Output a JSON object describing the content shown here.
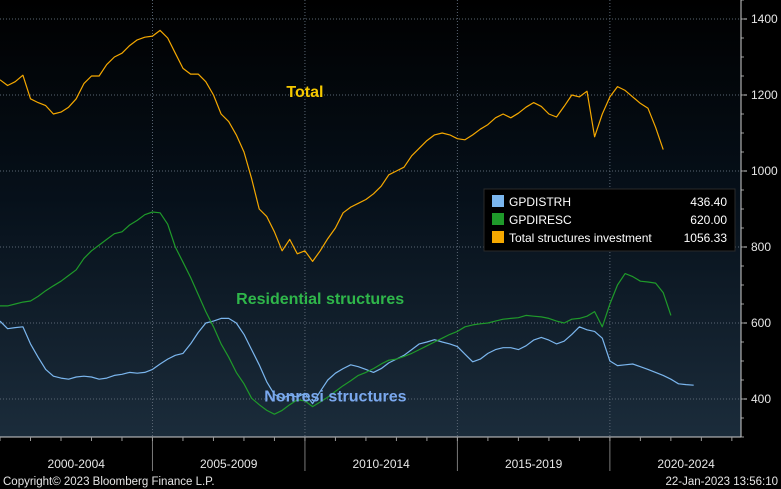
{
  "chart_data": {
    "type": "line",
    "ylim": [
      300,
      1450
    ],
    "xlim": [
      2000.0,
      2024.3
    ],
    "yticks": [
      400,
      600,
      800,
      1000,
      1200,
      1400
    ],
    "grid": true,
    "legend_position": "right",
    "x_category_labels": [
      {
        "label": "2000-2004",
        "center": 2002.5
      },
      {
        "label": "2005-2009",
        "center": 2007.5
      },
      {
        "label": "2010-2014",
        "center": 2012.5
      },
      {
        "label": "2015-2019",
        "center": 2017.5
      },
      {
        "label": "2020-2024",
        "center": 2022.5
      }
    ],
    "x_separators": [
      2005,
      2010,
      2015,
      2020
    ],
    "series": [
      {
        "name": "GPDISTRH",
        "color": "#7bb6ee",
        "last_value": "436.40",
        "points": [
          [
            2000.0,
            605
          ],
          [
            2000.25,
            585
          ],
          [
            2000.5,
            588
          ],
          [
            2000.75,
            590
          ],
          [
            2001.0,
            545
          ],
          [
            2001.25,
            510
          ],
          [
            2001.5,
            478
          ],
          [
            2001.75,
            460
          ],
          [
            2002.0,
            455
          ],
          [
            2002.25,
            452
          ],
          [
            2002.5,
            458
          ],
          [
            2002.75,
            460
          ],
          [
            2003.0,
            458
          ],
          [
            2003.25,
            452
          ],
          [
            2003.5,
            455
          ],
          [
            2003.75,
            462
          ],
          [
            2004.0,
            465
          ],
          [
            2004.25,
            470
          ],
          [
            2004.5,
            468
          ],
          [
            2004.75,
            470
          ],
          [
            2005.0,
            478
          ],
          [
            2005.25,
            492
          ],
          [
            2005.5,
            505
          ],
          [
            2005.75,
            515
          ],
          [
            2006.0,
            520
          ],
          [
            2006.25,
            545
          ],
          [
            2006.5,
            575
          ],
          [
            2006.75,
            600
          ],
          [
            2007.0,
            605
          ],
          [
            2007.25,
            612
          ],
          [
            2007.5,
            612
          ],
          [
            2007.75,
            600
          ],
          [
            2008.0,
            570
          ],
          [
            2008.25,
            530
          ],
          [
            2008.5,
            490
          ],
          [
            2008.75,
            445
          ],
          [
            2009.0,
            412
          ],
          [
            2009.25,
            402
          ],
          [
            2009.5,
            410
          ],
          [
            2009.75,
            405
          ],
          [
            2010.0,
            415
          ],
          [
            2010.25,
            388
          ],
          [
            2010.5,
            420
          ],
          [
            2010.75,
            450
          ],
          [
            2011.0,
            468
          ],
          [
            2011.25,
            480
          ],
          [
            2011.5,
            490
          ],
          [
            2011.75,
            485
          ],
          [
            2012.0,
            478
          ],
          [
            2012.25,
            470
          ],
          [
            2012.5,
            480
          ],
          [
            2012.75,
            495
          ],
          [
            2013.0,
            505
          ],
          [
            2013.25,
            515
          ],
          [
            2013.5,
            530
          ],
          [
            2013.75,
            545
          ],
          [
            2014.0,
            550
          ],
          [
            2014.25,
            556
          ],
          [
            2014.5,
            550
          ],
          [
            2014.75,
            545
          ],
          [
            2015.0,
            538
          ],
          [
            2015.25,
            518
          ],
          [
            2015.5,
            498
          ],
          [
            2015.75,
            505
          ],
          [
            2016.0,
            520
          ],
          [
            2016.25,
            530
          ],
          [
            2016.5,
            535
          ],
          [
            2016.75,
            535
          ],
          [
            2017.0,
            530
          ],
          [
            2017.25,
            540
          ],
          [
            2017.5,
            555
          ],
          [
            2017.75,
            562
          ],
          [
            2018.0,
            555
          ],
          [
            2018.25,
            545
          ],
          [
            2018.5,
            552
          ],
          [
            2018.75,
            570
          ],
          [
            2019.0,
            590
          ],
          [
            2019.25,
            582
          ],
          [
            2019.5,
            578
          ],
          [
            2019.75,
            560
          ],
          [
            2020.0,
            500
          ],
          [
            2020.25,
            488
          ],
          [
            2020.5,
            490
          ],
          [
            2020.75,
            492
          ],
          [
            2021.0,
            485
          ],
          [
            2021.25,
            478
          ],
          [
            2021.5,
            470
          ],
          [
            2021.75,
            462
          ],
          [
            2022.0,
            452
          ],
          [
            2022.25,
            440
          ],
          [
            2022.5,
            438
          ],
          [
            2022.75,
            436.4
          ]
        ]
      },
      {
        "name": "GPDIRESC",
        "color": "#1f9a2a",
        "last_value": "620.00",
        "points": [
          [
            2000.0,
            645
          ],
          [
            2000.25,
            645
          ],
          [
            2000.5,
            650
          ],
          [
            2000.75,
            655
          ],
          [
            2001.0,
            658
          ],
          [
            2001.25,
            670
          ],
          [
            2001.5,
            685
          ],
          [
            2001.75,
            698
          ],
          [
            2002.0,
            710
          ],
          [
            2002.25,
            725
          ],
          [
            2002.5,
            740
          ],
          [
            2002.75,
            770
          ],
          [
            2003.0,
            790
          ],
          [
            2003.25,
            805
          ],
          [
            2003.5,
            820
          ],
          [
            2003.75,
            835
          ],
          [
            2004.0,
            840
          ],
          [
            2004.25,
            858
          ],
          [
            2004.5,
            870
          ],
          [
            2004.75,
            885
          ],
          [
            2005.0,
            892
          ],
          [
            2005.25,
            890
          ],
          [
            2005.5,
            860
          ],
          [
            2005.75,
            800
          ],
          [
            2006.0,
            760
          ],
          [
            2006.25,
            720
          ],
          [
            2006.5,
            675
          ],
          [
            2006.75,
            630
          ],
          [
            2007.0,
            590
          ],
          [
            2007.25,
            545
          ],
          [
            2007.5,
            510
          ],
          [
            2007.75,
            470
          ],
          [
            2008.0,
            440
          ],
          [
            2008.25,
            402
          ],
          [
            2008.5,
            385
          ],
          [
            2008.75,
            370
          ],
          [
            2009.0,
            360
          ],
          [
            2009.25,
            370
          ],
          [
            2009.5,
            385
          ],
          [
            2009.75,
            398
          ],
          [
            2010.0,
            395
          ],
          [
            2010.25,
            380
          ],
          [
            2010.5,
            392
          ],
          [
            2010.75,
            405
          ],
          [
            2011.0,
            420
          ],
          [
            2011.25,
            435
          ],
          [
            2011.5,
            448
          ],
          [
            2011.75,
            462
          ],
          [
            2012.0,
            470
          ],
          [
            2012.25,
            480
          ],
          [
            2012.5,
            492
          ],
          [
            2012.75,
            502
          ],
          [
            2013.0,
            505
          ],
          [
            2013.25,
            512
          ],
          [
            2013.5,
            520
          ],
          [
            2013.75,
            530
          ],
          [
            2014.0,
            540
          ],
          [
            2014.25,
            550
          ],
          [
            2014.5,
            560
          ],
          [
            2014.75,
            570
          ],
          [
            2015.0,
            578
          ],
          [
            2015.25,
            590
          ],
          [
            2015.5,
            595
          ],
          [
            2015.75,
            598
          ],
          [
            2016.0,
            600
          ],
          [
            2016.25,
            605
          ],
          [
            2016.5,
            610
          ],
          [
            2016.75,
            612
          ],
          [
            2017.0,
            614
          ],
          [
            2017.25,
            620
          ],
          [
            2017.5,
            618
          ],
          [
            2017.75,
            616
          ],
          [
            2018.0,
            612
          ],
          [
            2018.25,
            605
          ],
          [
            2018.5,
            600
          ],
          [
            2018.75,
            610
          ],
          [
            2019.0,
            612
          ],
          [
            2019.25,
            618
          ],
          [
            2019.5,
            630
          ],
          [
            2019.75,
            590
          ],
          [
            2020.0,
            650
          ],
          [
            2020.25,
            700
          ],
          [
            2020.5,
            730
          ],
          [
            2020.75,
            722
          ],
          [
            2021.0,
            710
          ],
          [
            2021.25,
            708
          ],
          [
            2021.5,
            705
          ],
          [
            2021.75,
            680
          ],
          [
            2022.0,
            620
          ]
        ]
      },
      {
        "name": "Total structures investment",
        "color": "#f5a800",
        "last_value": "1056.33",
        "points": [
          [
            2000.0,
            1240
          ],
          [
            2000.25,
            1225
          ],
          [
            2000.5,
            1235
          ],
          [
            2000.75,
            1252
          ],
          [
            2001.0,
            1190
          ],
          [
            2001.25,
            1180
          ],
          [
            2001.5,
            1172
          ],
          [
            2001.75,
            1150
          ],
          [
            2002.0,
            1155
          ],
          [
            2002.25,
            1168
          ],
          [
            2002.5,
            1190
          ],
          [
            2002.75,
            1230
          ],
          [
            2003.0,
            1250
          ],
          [
            2003.25,
            1250
          ],
          [
            2003.5,
            1280
          ],
          [
            2003.75,
            1300
          ],
          [
            2004.0,
            1310
          ],
          [
            2004.25,
            1330
          ],
          [
            2004.5,
            1345
          ],
          [
            2004.75,
            1352
          ],
          [
            2005.0,
            1355
          ],
          [
            2005.25,
            1370
          ],
          [
            2005.5,
            1350
          ],
          [
            2005.75,
            1310
          ],
          [
            2006.0,
            1270
          ],
          [
            2006.25,
            1255
          ],
          [
            2006.5,
            1255
          ],
          [
            2006.75,
            1235
          ],
          [
            2007.0,
            1200
          ],
          [
            2007.25,
            1150
          ],
          [
            2007.5,
            1130
          ],
          [
            2007.75,
            1095
          ],
          [
            2008.0,
            1050
          ],
          [
            2008.25,
            980
          ],
          [
            2008.5,
            900
          ],
          [
            2008.75,
            880
          ],
          [
            2009.0,
            840
          ],
          [
            2009.25,
            790
          ],
          [
            2009.5,
            820
          ],
          [
            2009.75,
            782
          ],
          [
            2010.0,
            790
          ],
          [
            2010.25,
            762
          ],
          [
            2010.5,
            790
          ],
          [
            2010.75,
            822
          ],
          [
            2011.0,
            850
          ],
          [
            2011.25,
            890
          ],
          [
            2011.5,
            905
          ],
          [
            2011.75,
            915
          ],
          [
            2012.0,
            925
          ],
          [
            2012.25,
            940
          ],
          [
            2012.5,
            960
          ],
          [
            2012.75,
            990
          ],
          [
            2013.0,
            1000
          ],
          [
            2013.25,
            1010
          ],
          [
            2013.5,
            1040
          ],
          [
            2013.75,
            1060
          ],
          [
            2014.0,
            1080
          ],
          [
            2014.25,
            1095
          ],
          [
            2014.5,
            1100
          ],
          [
            2014.75,
            1095
          ],
          [
            2015.0,
            1085
          ],
          [
            2015.25,
            1082
          ],
          [
            2015.5,
            1095
          ],
          [
            2015.75,
            1110
          ],
          [
            2016.0,
            1122
          ],
          [
            2016.25,
            1140
          ],
          [
            2016.5,
            1150
          ],
          [
            2016.75,
            1140
          ],
          [
            2017.0,
            1152
          ],
          [
            2017.25,
            1168
          ],
          [
            2017.5,
            1180
          ],
          [
            2017.75,
            1170
          ],
          [
            2018.0,
            1150
          ],
          [
            2018.25,
            1142
          ],
          [
            2018.5,
            1170
          ],
          [
            2018.75,
            1200
          ],
          [
            2019.0,
            1195
          ],
          [
            2019.25,
            1210
          ],
          [
            2019.5,
            1090
          ],
          [
            2019.75,
            1150
          ],
          [
            2020.0,
            1195
          ],
          [
            2020.25,
            1222
          ],
          [
            2020.5,
            1212
          ],
          [
            2020.75,
            1195
          ],
          [
            2021.0,
            1178
          ],
          [
            2021.25,
            1165
          ],
          [
            2021.5,
            1115
          ],
          [
            2021.75,
            1056.33
          ]
        ]
      }
    ],
    "annotations": [
      {
        "text": "Total",
        "color": "#f5c800",
        "x": 2010.0,
        "y": 1195
      },
      {
        "text": "Residential structures",
        "color": "#2fb64a",
        "x": 2010.5,
        "y": 650
      },
      {
        "text": "Nonresi structures",
        "color": "#7aa8ee",
        "x": 2011.0,
        "y": 393
      }
    ]
  },
  "footer": {
    "copyright": "Copyright© 2023 Bloomberg Finance L.P.",
    "timestamp": "22-Jan-2023 13:56:10"
  }
}
